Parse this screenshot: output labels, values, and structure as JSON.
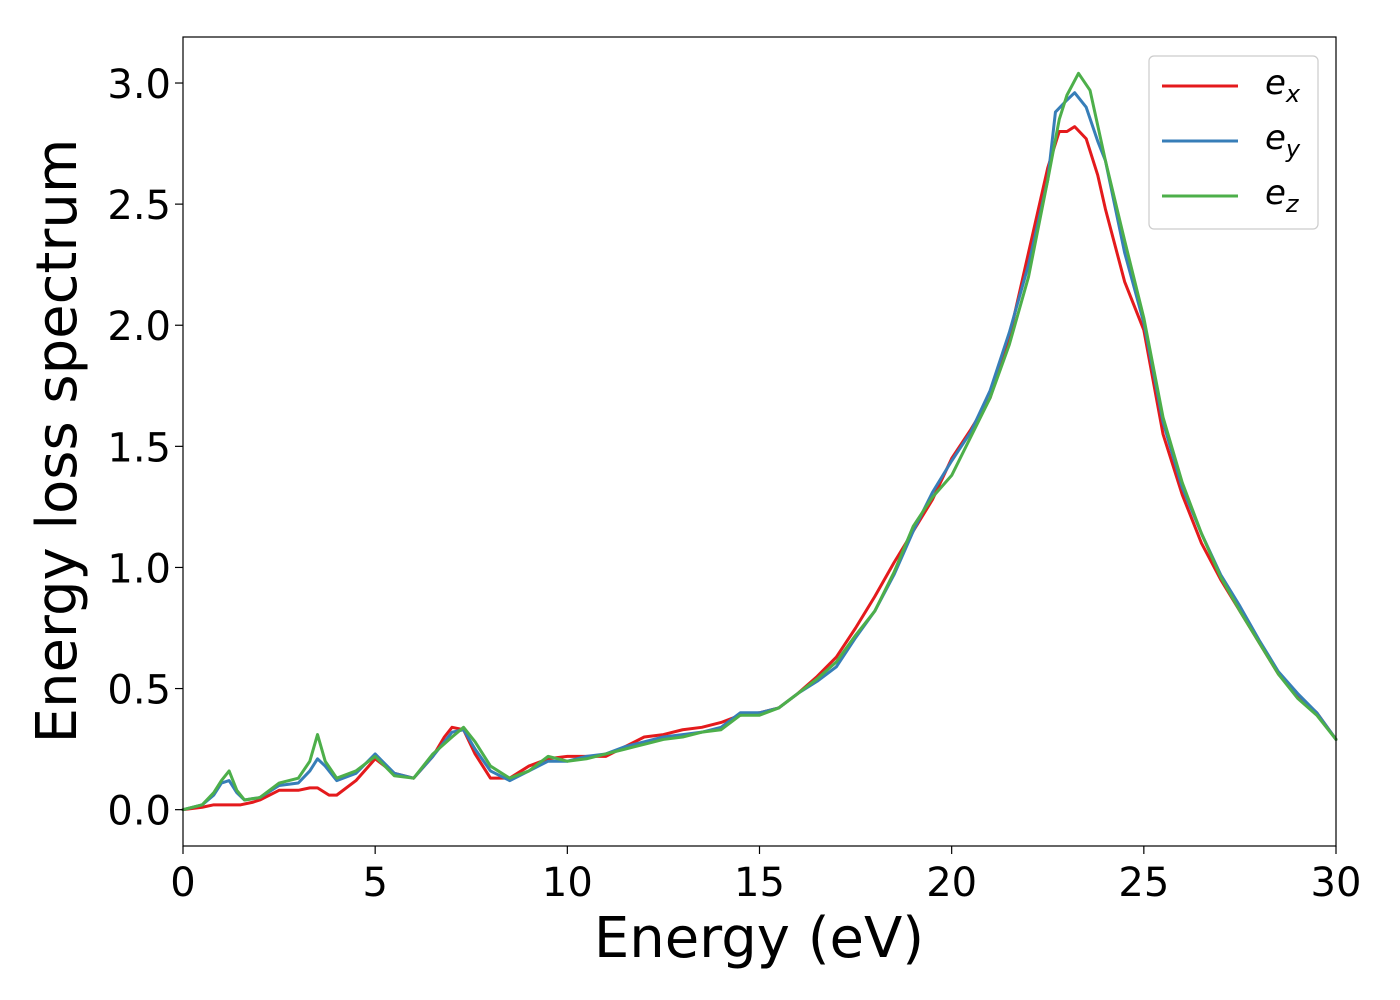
{
  "chart_data": {
    "type": "line",
    "xlabel": "Energy (eV)",
    "ylabel": "Energy loss spectrum",
    "xlim": [
      0,
      30
    ],
    "ylim": [
      -0.15,
      3.19
    ],
    "xticks": [
      0,
      5,
      10,
      15,
      20,
      25,
      30
    ],
    "xtick_labels": [
      "0",
      "5",
      "10",
      "15",
      "20",
      "25",
      "30"
    ],
    "yticks": [
      0.0,
      0.5,
      1.0,
      1.5,
      2.0,
      2.5,
      3.0
    ],
    "ytick_labels": [
      "0.0",
      "0.5",
      "1.0",
      "1.5",
      "2.0",
      "2.5",
      "3.0"
    ],
    "grid": false,
    "legend_position": "top-right",
    "series": [
      {
        "name": "e",
        "name_sub": "x",
        "color": "#e41a1c",
        "x": [
          0,
          0.5,
          0.8,
          1.0,
          1.2,
          1.5,
          1.8,
          2.0,
          2.5,
          3.0,
          3.3,
          3.5,
          3.8,
          4.0,
          4.5,
          5.0,
          5.5,
          6.0,
          6.5,
          6.8,
          7.0,
          7.3,
          7.6,
          8.0,
          8.5,
          9.0,
          9.5,
          10.0,
          10.5,
          11.0,
          11.5,
          12.0,
          12.5,
          13.0,
          13.5,
          14.0,
          14.5,
          15.0,
          15.5,
          16.0,
          16.5,
          17.0,
          17.5,
          18.0,
          18.5,
          19.0,
          19.5,
          20.0,
          20.5,
          21.0,
          21.5,
          22.0,
          22.5,
          22.8,
          23.0,
          23.2,
          23.5,
          23.8,
          24.0,
          24.5,
          25.0,
          25.5,
          26.0,
          26.5,
          27.0,
          27.5,
          28.0,
          28.5,
          29.0,
          29.5,
          30.0
        ],
        "y": [
          0.0,
          0.01,
          0.02,
          0.02,
          0.02,
          0.02,
          0.03,
          0.04,
          0.08,
          0.08,
          0.09,
          0.09,
          0.06,
          0.06,
          0.12,
          0.21,
          0.15,
          0.13,
          0.22,
          0.3,
          0.34,
          0.33,
          0.23,
          0.13,
          0.13,
          0.18,
          0.21,
          0.22,
          0.22,
          0.22,
          0.26,
          0.3,
          0.31,
          0.33,
          0.34,
          0.36,
          0.39,
          0.4,
          0.42,
          0.48,
          0.55,
          0.63,
          0.75,
          0.88,
          1.02,
          1.15,
          1.28,
          1.45,
          1.57,
          1.7,
          1.95,
          2.3,
          2.65,
          2.8,
          2.8,
          2.82,
          2.77,
          2.62,
          2.48,
          2.18,
          1.98,
          1.55,
          1.3,
          1.1,
          0.95,
          0.82,
          0.69,
          0.56,
          0.47,
          0.4,
          0.29
        ]
      },
      {
        "name": "e",
        "name_sub": "y",
        "color": "#377eb8",
        "x": [
          0,
          0.5,
          0.8,
          1.0,
          1.2,
          1.4,
          1.6,
          2.0,
          2.5,
          3.0,
          3.3,
          3.5,
          3.7,
          4.0,
          4.5,
          5.0,
          5.5,
          6.0,
          6.5,
          7.0,
          7.3,
          7.6,
          8.0,
          8.5,
          9.0,
          9.5,
          10.0,
          10.5,
          11.0,
          11.5,
          12.0,
          12.5,
          13.0,
          13.5,
          14.0,
          14.5,
          15.0,
          15.5,
          16.0,
          16.5,
          17.0,
          17.5,
          18.0,
          18.5,
          19.0,
          19.5,
          20.0,
          20.5,
          21.0,
          21.5,
          22.0,
          22.5,
          22.7,
          23.0,
          23.2,
          23.5,
          23.8,
          24.0,
          24.5,
          25.0,
          25.5,
          26.0,
          26.5,
          27.0,
          27.5,
          28.0,
          28.5,
          29.0,
          29.5,
          30.0
        ],
        "y": [
          0.0,
          0.02,
          0.06,
          0.11,
          0.12,
          0.07,
          0.04,
          0.05,
          0.1,
          0.11,
          0.16,
          0.21,
          0.18,
          0.12,
          0.15,
          0.23,
          0.15,
          0.13,
          0.22,
          0.32,
          0.33,
          0.25,
          0.16,
          0.12,
          0.16,
          0.2,
          0.2,
          0.22,
          0.23,
          0.26,
          0.28,
          0.3,
          0.31,
          0.32,
          0.34,
          0.4,
          0.4,
          0.42,
          0.48,
          0.53,
          0.59,
          0.71,
          0.82,
          0.97,
          1.15,
          1.31,
          1.44,
          1.56,
          1.73,
          1.97,
          2.25,
          2.6,
          2.88,
          2.93,
          2.96,
          2.9,
          2.76,
          2.68,
          2.3,
          2.01,
          1.6,
          1.33,
          1.14,
          0.97,
          0.84,
          0.7,
          0.57,
          0.48,
          0.4,
          0.29
        ]
      },
      {
        "name": "e",
        "name_sub": "z",
        "color": "#4daf4a",
        "x": [
          0,
          0.5,
          0.8,
          1.0,
          1.2,
          1.4,
          1.6,
          2.0,
          2.5,
          3.0,
          3.3,
          3.5,
          3.7,
          4.0,
          4.5,
          5.0,
          5.5,
          6.0,
          6.5,
          7.0,
          7.3,
          7.6,
          8.0,
          8.5,
          9.0,
          9.5,
          10.0,
          10.5,
          11.0,
          11.5,
          12.0,
          12.5,
          13.0,
          13.5,
          14.0,
          14.5,
          15.0,
          15.5,
          16.0,
          16.5,
          17.0,
          17.5,
          18.0,
          18.5,
          19.0,
          19.5,
          20.0,
          20.5,
          21.0,
          21.5,
          22.0,
          22.5,
          22.8,
          23.0,
          23.3,
          23.6,
          24.0,
          24.5,
          25.0,
          25.5,
          26.0,
          26.5,
          27.0,
          27.5,
          28.0,
          28.5,
          29.0,
          29.5,
          30.0
        ],
        "y": [
          0.0,
          0.02,
          0.07,
          0.12,
          0.16,
          0.08,
          0.04,
          0.05,
          0.11,
          0.13,
          0.2,
          0.31,
          0.2,
          0.13,
          0.16,
          0.22,
          0.14,
          0.13,
          0.23,
          0.3,
          0.34,
          0.28,
          0.18,
          0.13,
          0.16,
          0.22,
          0.2,
          0.21,
          0.23,
          0.25,
          0.27,
          0.29,
          0.3,
          0.32,
          0.33,
          0.39,
          0.39,
          0.42,
          0.48,
          0.54,
          0.61,
          0.72,
          0.82,
          0.98,
          1.17,
          1.29,
          1.38,
          1.54,
          1.7,
          1.92,
          2.2,
          2.6,
          2.85,
          2.95,
          3.04,
          2.97,
          2.68,
          2.35,
          2.03,
          1.62,
          1.35,
          1.14,
          0.96,
          0.82,
          0.69,
          0.56,
          0.46,
          0.39,
          0.29
        ]
      }
    ]
  }
}
